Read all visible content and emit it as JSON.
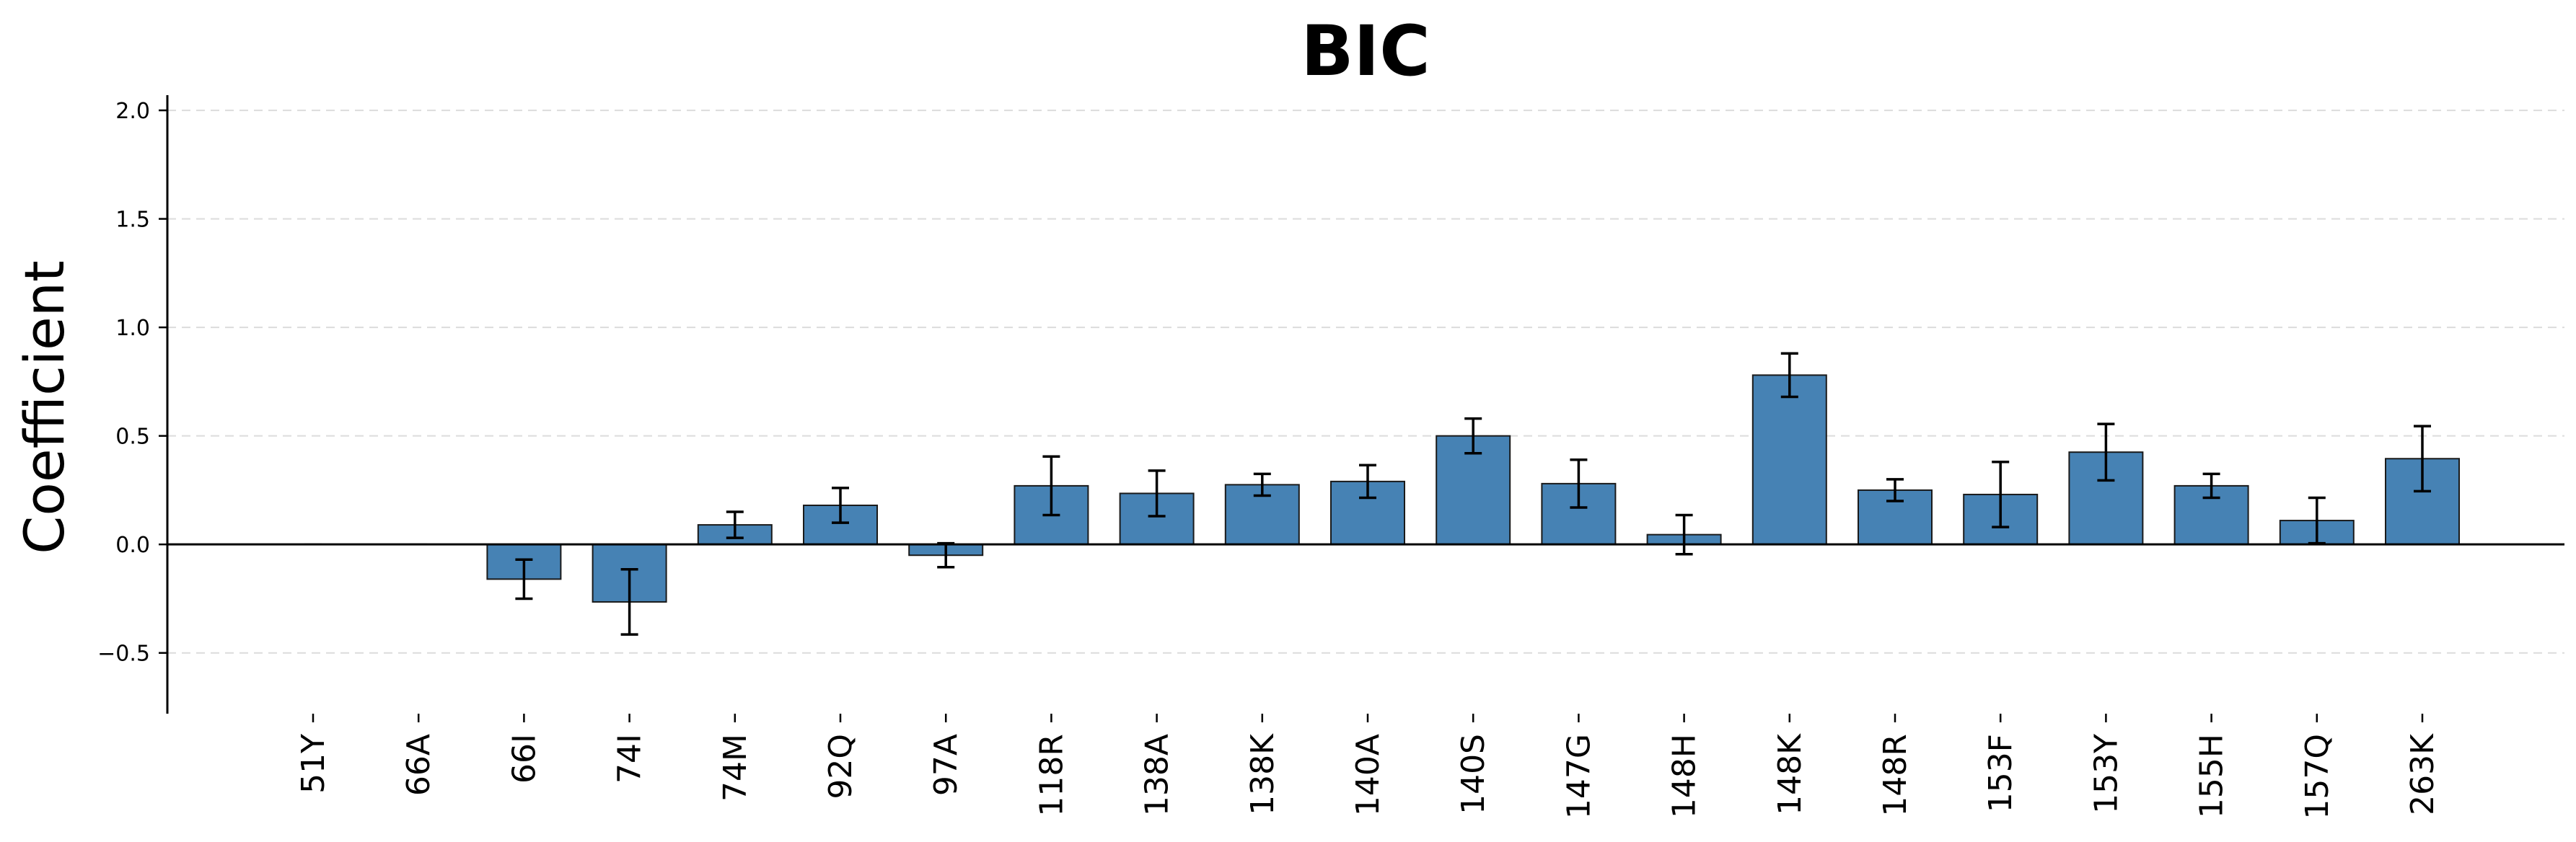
{
  "chart_data": {
    "type": "bar",
    "title": "BIC",
    "xlabel": "",
    "ylabel": "Coefficient",
    "ylim": [
      -0.78,
      2.07
    ],
    "yticks": [
      -0.5,
      0.0,
      0.5,
      1.0,
      1.5,
      2.0
    ],
    "ytick_labels": [
      "−0.5",
      "0.0",
      "0.5",
      "1.0",
      "1.5",
      "2.0"
    ],
    "grid": "horizontal-dashed",
    "bar_color": "#4682b4",
    "categories": [
      "51Y",
      "66A",
      "66I",
      "74I",
      "74M",
      "92Q",
      "97A",
      "118R",
      "138A",
      "138K",
      "140A",
      "140S",
      "147G",
      "148H",
      "148K",
      "148R",
      "153F",
      "153Y",
      "155H",
      "157Q",
      "263K"
    ],
    "values": [
      0.0,
      0.0,
      -0.16,
      -0.265,
      0.09,
      0.18,
      -0.05,
      0.27,
      0.235,
      0.275,
      0.29,
      0.5,
      0.28,
      0.045,
      0.78,
      0.25,
      0.23,
      0.425,
      0.27,
      0.11,
      0.395
    ],
    "errors": [
      0.0,
      0.0,
      0.09,
      0.15,
      0.06,
      0.08,
      0.055,
      0.135,
      0.105,
      0.05,
      0.075,
      0.08,
      0.11,
      0.09,
      0.1,
      0.05,
      0.15,
      0.13,
      0.055,
      0.105,
      0.15
    ]
  }
}
